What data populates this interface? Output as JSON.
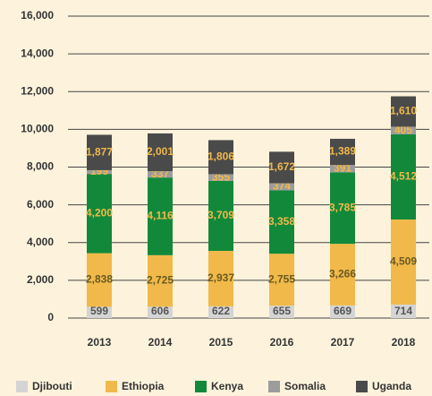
{
  "chart_data": {
    "type": "stacked_bar",
    "categories": [
      "2013",
      "2014",
      "2015",
      "2016",
      "2017",
      "2018"
    ],
    "series": [
      {
        "name": "Djibouti",
        "color": "#d4d4d4",
        "values": [
          599,
          606,
          622,
          655,
          669,
          714
        ]
      },
      {
        "name": "Ethiopia",
        "color": "#f0b94a",
        "values": [
          2838,
          2725,
          2937,
          2755,
          3266,
          4509
        ],
        "value_labels": [
          "2,838",
          "2,725",
          "2,937",
          "2,755",
          "3,266",
          "4,509"
        ]
      },
      {
        "name": "Kenya",
        "color": "#12893a",
        "values": [
          4200,
          4116,
          3709,
          3358,
          3785,
          4512
        ],
        "value_labels": [
          "4,200",
          "4,116",
          "3,709",
          "3,358",
          "3,785",
          "4,512"
        ]
      },
      {
        "name": "Somalia",
        "color": "#9c9c9c",
        "values": [
          199,
          337,
          355,
          374,
          391,
          405
        ]
      },
      {
        "name": "Uganda",
        "color": "#4a4a4a",
        "values": [
          1877,
          2001,
          1806,
          1672,
          1389,
          1610
        ],
        "value_labels": [
          "1,877",
          "2,001",
          "1,806",
          "1,672",
          "1,389",
          "1,610"
        ]
      }
    ],
    "ylim": [
      0,
      16000
    ],
    "yticks": [
      {
        "value": 0,
        "label": "0"
      },
      {
        "value": 2000,
        "label": "2,000"
      },
      {
        "value": 4000,
        "label": "4,000"
      },
      {
        "value": 6000,
        "label": "6,000"
      },
      {
        "value": 8000,
        "label": "8,000"
      },
      {
        "value": 10000,
        "label": "10,000"
      },
      {
        "value": 12000,
        "label": "12,000"
      },
      {
        "value": 14000,
        "label": "14,000"
      },
      {
        "value": 16000,
        "label": "16,000"
      }
    ],
    "grid": true,
    "legend": "bottom"
  }
}
